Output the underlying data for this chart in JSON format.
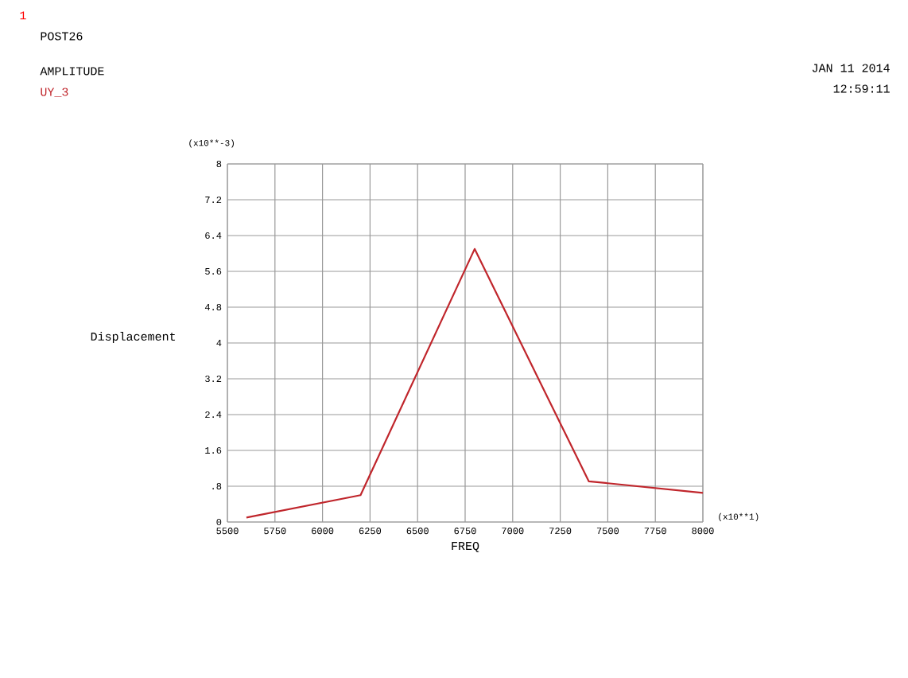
{
  "chart_data": {
    "type": "line",
    "title": "POST26",
    "subtitle": "AMPLITUDE",
    "xlabel": "FREQ",
    "ylabel": "Displacement",
    "annotations": [
      "1",
      "(x10**-3)",
      "(x10**1)",
      "JAN 11 2014",
      "12:59:11"
    ],
    "x": [
      5600,
      6200,
      6800,
      7400,
      8000
    ],
    "series": [
      {
        "name": "UY_3",
        "color": "#c0262c",
        "values": [
          0.1,
          0.6,
          6.1,
          0.91,
          0.65
        ]
      }
    ],
    "xlim": [
      5500,
      8000
    ],
    "ylim": [
      0,
      8
    ],
    "xticks": [
      5500,
      5750,
      6000,
      6250,
      6500,
      6750,
      7000,
      7250,
      7500,
      7750,
      8000
    ],
    "yticks": [
      {
        "value": 0,
        "label": "0"
      },
      {
        "value": 0.8,
        "label": ".8"
      },
      {
        "value": 1.6,
        "label": "1.6"
      },
      {
        "value": 2.4,
        "label": "2.4"
      },
      {
        "value": 3.2,
        "label": "3.2"
      },
      {
        "value": 4,
        "label": "4"
      },
      {
        "value": 4.8,
        "label": "4.8"
      },
      {
        "value": 5.6,
        "label": "5.6"
      },
      {
        "value": 6.4,
        "label": "6.4"
      },
      {
        "value": 7.2,
        "label": "7.2"
      },
      {
        "value": 8,
        "label": "8"
      }
    ],
    "grid": true,
    "legend": "top left",
    "marker": "none",
    "line_style": "solid"
  }
}
